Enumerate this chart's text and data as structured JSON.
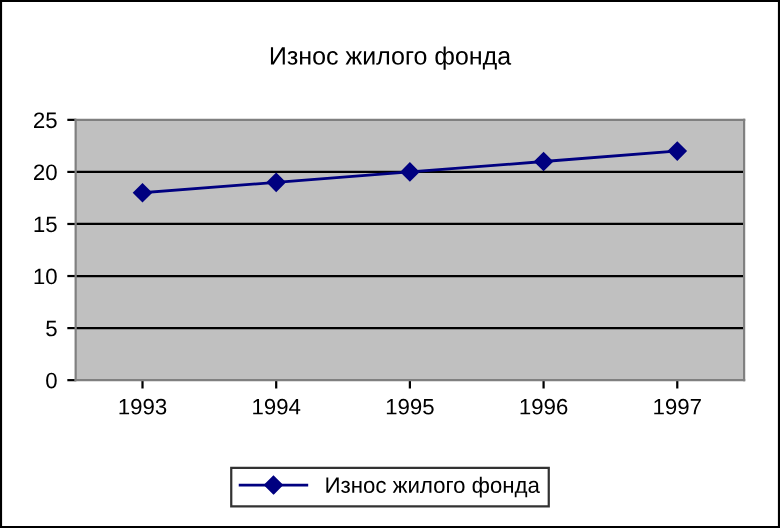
{
  "chart_data": {
    "type": "line",
    "title": "Износ жилого фонда",
    "categories": [
      "1993",
      "1994",
      "1995",
      "1996",
      "1997"
    ],
    "series": [
      {
        "name": "Износ жилого фонда",
        "color": "#000080",
        "values": [
          18,
          19,
          20,
          21,
          22
        ]
      }
    ],
    "ylim": [
      0,
      25
    ],
    "yticks": [
      0,
      5,
      10,
      15,
      20,
      25
    ],
    "grid": "y",
    "legend": "bottom",
    "marker": "diamond",
    "line_style": "solid"
  }
}
